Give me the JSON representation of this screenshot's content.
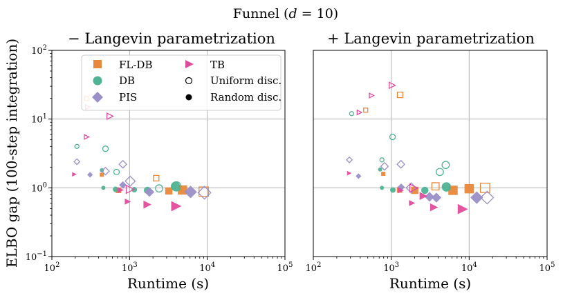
{
  "figure_title": "Funnel (d = 10)",
  "figure_title_parts": {
    "prefix": "Funnel (",
    "var": "d",
    "suffix": " = 10)"
  },
  "colors": {
    "FL-DB": "#e8883a",
    "DB": "#4fb394",
    "PIS": "#9a8fc8",
    "TB": "#e14b9c",
    "grid": "#b0b0b0"
  },
  "legend": {
    "placement": "upper-left of left panel",
    "entries": [
      {
        "label": "FL-DB",
        "marker": "square",
        "color": "#e8883a"
      },
      {
        "label": "DB",
        "marker": "circle",
        "color": "#4fb394"
      },
      {
        "label": "PIS",
        "marker": "diamond",
        "color": "#9a8fc8"
      },
      {
        "label": "TB",
        "marker": "triangle-right",
        "color": "#e14b9c"
      },
      {
        "label": "Uniform disc.",
        "marker": "circle-open",
        "color": "#000000"
      },
      {
        "label": "Random disc.",
        "marker": "circle-filled",
        "color": "#000000"
      }
    ]
  },
  "chart_data": [
    {
      "type": "scatter",
      "title": "− Langevin parametrization",
      "xlabel": "Runtime (s)",
      "ylabel": "ELBO gap (100-step integration)",
      "xscale": "log",
      "yscale": "log",
      "xlim": [
        100,
        100000
      ],
      "ylim": [
        0.1,
        100
      ],
      "xticks": [
        "10^2",
        "10^3",
        "10^4",
        "10^5"
      ],
      "yticks": [
        "10^-1",
        "10^0",
        "10^1",
        "10^2"
      ],
      "grid": true,
      "points": [
        {
          "method": "FL-DB",
          "disc": "uniform",
          "x": 280,
          "y": 20,
          "size": 1
        },
        {
          "method": "FL-DB",
          "disc": "uniform",
          "x": 2200,
          "y": 1.38,
          "size": 2
        },
        {
          "method": "FL-DB",
          "disc": "uniform",
          "x": 9000,
          "y": 0.88,
          "size": 4
        },
        {
          "method": "FL-DB",
          "disc": "random",
          "x": 440,
          "y": 1.55,
          "size": 1
        },
        {
          "method": "FL-DB",
          "disc": "random",
          "x": 720,
          "y": 0.92,
          "size": 2
        },
        {
          "method": "FL-DB",
          "disc": "random",
          "x": 3200,
          "y": 0.9,
          "size": 3
        },
        {
          "method": "FL-DB",
          "disc": "random",
          "x": 4800,
          "y": 0.93,
          "size": 4
        },
        {
          "method": "DB",
          "disc": "uniform",
          "x": 210,
          "y": 4.0,
          "size": 1
        },
        {
          "method": "DB",
          "disc": "uniform",
          "x": 490,
          "y": 3.7,
          "size": 2
        },
        {
          "method": "DB",
          "disc": "uniform",
          "x": 680,
          "y": 1.7,
          "size": 2
        },
        {
          "method": "DB",
          "disc": "uniform",
          "x": 2400,
          "y": 0.98,
          "size": 3
        },
        {
          "method": "DB",
          "disc": "uniform",
          "x": 4000,
          "y": 1.05,
          "size": 4
        },
        {
          "method": "DB",
          "disc": "random",
          "x": 440,
          "y": 1.8,
          "size": 1
        },
        {
          "method": "DB",
          "disc": "random",
          "x": 460,
          "y": 1.0,
          "size": 1
        },
        {
          "method": "DB",
          "disc": "random",
          "x": 660,
          "y": 0.95,
          "size": 2
        },
        {
          "method": "DB",
          "disc": "random",
          "x": 1150,
          "y": 0.94,
          "size": 2
        },
        {
          "method": "DB",
          "disc": "random",
          "x": 1700,
          "y": 0.92,
          "size": 3
        },
        {
          "method": "DB",
          "disc": "random",
          "x": 3900,
          "y": 1.05,
          "size": 4
        },
        {
          "method": "PIS",
          "disc": "uniform",
          "x": 210,
          "y": 2.4,
          "size": 1
        },
        {
          "method": "PIS",
          "disc": "uniform",
          "x": 490,
          "y": 1.75,
          "size": 2
        },
        {
          "method": "PIS",
          "disc": "uniform",
          "x": 820,
          "y": 2.2,
          "size": 2
        },
        {
          "method": "PIS",
          "disc": "uniform",
          "x": 1020,
          "y": 1.25,
          "size": 3
        },
        {
          "method": "PIS",
          "disc": "uniform",
          "x": 9200,
          "y": 0.85,
          "size": 4
        },
        {
          "method": "PIS",
          "disc": "random",
          "x": 310,
          "y": 1.55,
          "size": 1
        },
        {
          "method": "PIS",
          "disc": "random",
          "x": 820,
          "y": 1.1,
          "size": 2
        },
        {
          "method": "PIS",
          "disc": "random",
          "x": 1800,
          "y": 0.87,
          "size": 3
        },
        {
          "method": "PIS",
          "disc": "random",
          "x": 6100,
          "y": 0.87,
          "size": 4
        },
        {
          "method": "TB",
          "disc": "uniform",
          "x": 280,
          "y": 5.5,
          "size": 1
        },
        {
          "method": "TB",
          "disc": "uniform",
          "x": 290,
          "y": 15,
          "size": 1
        },
        {
          "method": "TB",
          "disc": "uniform",
          "x": 560,
          "y": 11,
          "size": 2
        },
        {
          "method": "TB",
          "disc": "uniform",
          "x": 1020,
          "y": 0.95,
          "size": 3
        },
        {
          "method": "TB",
          "disc": "random",
          "x": 195,
          "y": 1.57,
          "size": 1
        },
        {
          "method": "TB",
          "disc": "random",
          "x": 770,
          "y": 0.93,
          "size": 2
        },
        {
          "method": "TB",
          "disc": "random",
          "x": 950,
          "y": 0.63,
          "size": 2
        },
        {
          "method": "TB",
          "disc": "random",
          "x": 1700,
          "y": 0.57,
          "size": 3
        },
        {
          "method": "TB",
          "disc": "random",
          "x": 4000,
          "y": 0.54,
          "size": 4
        }
      ]
    },
    {
      "type": "scatter",
      "title": "+ Langevin parametrization",
      "xlabel": "Runtime (s)",
      "ylabel": "",
      "xscale": "log",
      "yscale": "log",
      "xlim": [
        100,
        100000
      ],
      "ylim": [
        0.1,
        100
      ],
      "xticks": [
        "10^2",
        "10^3",
        "10^4",
        "10^5"
      ],
      "yticks": [],
      "grid": true,
      "points": [
        {
          "method": "FL-DB",
          "disc": "uniform",
          "x": 470,
          "y": 13.5,
          "size": 1
        },
        {
          "method": "FL-DB",
          "disc": "uniform",
          "x": 1300,
          "y": 22.5,
          "size": 2
        },
        {
          "method": "FL-DB",
          "disc": "uniform",
          "x": 3700,
          "y": 1.05,
          "size": 3
        },
        {
          "method": "FL-DB",
          "disc": "uniform",
          "x": 16000,
          "y": 1.0,
          "size": 4
        },
        {
          "method": "FL-DB",
          "disc": "random",
          "x": 790,
          "y": 1.6,
          "size": 1
        },
        {
          "method": "FL-DB",
          "disc": "random",
          "x": 1280,
          "y": 0.93,
          "size": 2
        },
        {
          "method": "FL-DB",
          "disc": "random",
          "x": 2000,
          "y": 0.92,
          "size": 3
        },
        {
          "method": "FL-DB",
          "disc": "random",
          "x": 6200,
          "y": 0.92,
          "size": 4
        },
        {
          "method": "FL-DB",
          "disc": "random",
          "x": 10000,
          "y": 0.97,
          "size": 4
        },
        {
          "method": "DB",
          "disc": "uniform",
          "x": 310,
          "y": 12,
          "size": 1
        },
        {
          "method": "DB",
          "disc": "uniform",
          "x": 760,
          "y": 2.55,
          "size": 1
        },
        {
          "method": "DB",
          "disc": "uniform",
          "x": 1040,
          "y": 5.5,
          "size": 2
        },
        {
          "method": "DB",
          "disc": "uniform",
          "x": 4200,
          "y": 1.7,
          "size": 3
        },
        {
          "method": "DB",
          "disc": "uniform",
          "x": 5000,
          "y": 2.15,
          "size": 3
        },
        {
          "method": "DB",
          "disc": "random",
          "x": 720,
          "y": 1.85,
          "size": 1
        },
        {
          "method": "DB",
          "disc": "random",
          "x": 760,
          "y": 1.0,
          "size": 1
        },
        {
          "method": "DB",
          "disc": "random",
          "x": 1050,
          "y": 0.93,
          "size": 2
        },
        {
          "method": "DB",
          "disc": "random",
          "x": 2700,
          "y": 0.92,
          "size": 3
        },
        {
          "method": "DB",
          "disc": "random",
          "x": 5100,
          "y": 1.03,
          "size": 4
        },
        {
          "method": "PIS",
          "disc": "uniform",
          "x": 290,
          "y": 2.55,
          "size": 1
        },
        {
          "method": "PIS",
          "disc": "uniform",
          "x": 820,
          "y": 2.05,
          "size": 2
        },
        {
          "method": "PIS",
          "disc": "uniform",
          "x": 1330,
          "y": 2.2,
          "size": 2
        },
        {
          "method": "PIS",
          "disc": "uniform",
          "x": 1800,
          "y": 1.0,
          "size": 3
        },
        {
          "method": "PIS",
          "disc": "uniform",
          "x": 17000,
          "y": 0.72,
          "size": 4
        },
        {
          "method": "PIS",
          "disc": "random",
          "x": 380,
          "y": 1.48,
          "size": 1
        },
        {
          "method": "PIS",
          "disc": "random",
          "x": 1340,
          "y": 1.02,
          "size": 2
        },
        {
          "method": "PIS",
          "disc": "random",
          "x": 3100,
          "y": 0.74,
          "size": 3
        },
        {
          "method": "PIS",
          "disc": "random",
          "x": 3800,
          "y": 0.72,
          "size": 3
        },
        {
          "method": "PIS",
          "disc": "random",
          "x": 12500,
          "y": 0.72,
          "size": 4
        },
        {
          "method": "TB",
          "disc": "uniform",
          "x": 390,
          "y": 12.5,
          "size": 1
        },
        {
          "method": "TB",
          "disc": "uniform",
          "x": 560,
          "y": 22,
          "size": 1
        },
        {
          "method": "TB",
          "disc": "uniform",
          "x": 1030,
          "y": 31,
          "size": 2
        },
        {
          "method": "TB",
          "disc": "uniform",
          "x": 1950,
          "y": 0.99,
          "size": 3
        },
        {
          "method": "TB",
          "disc": "random",
          "x": 290,
          "y": 1.63,
          "size": 1
        },
        {
          "method": "TB",
          "disc": "random",
          "x": 1330,
          "y": 0.92,
          "size": 2
        },
        {
          "method": "TB",
          "disc": "random",
          "x": 1850,
          "y": 0.6,
          "size": 2
        },
        {
          "method": "TB",
          "disc": "random",
          "x": 2600,
          "y": 0.76,
          "size": 3
        },
        {
          "method": "TB",
          "disc": "random",
          "x": 3550,
          "y": 0.52,
          "size": 3
        },
        {
          "method": "TB",
          "disc": "random",
          "x": 8300,
          "y": 0.49,
          "size": 4
        }
      ]
    }
  ]
}
